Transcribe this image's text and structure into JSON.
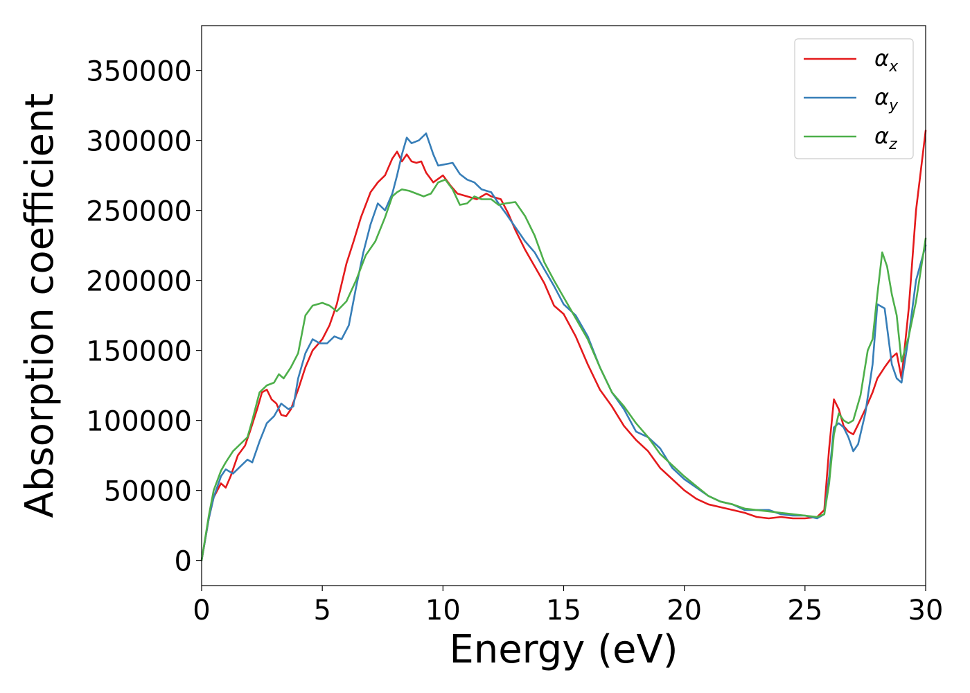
{
  "chart_data": {
    "type": "line",
    "xlabel": "Energy (eV)",
    "ylabel": "Absorption coefficient",
    "xlim": [
      0,
      30
    ],
    "ylim": [
      -18000,
      382000
    ],
    "x_ticks": [
      "0",
      "5",
      "10",
      "15",
      "20",
      "25",
      "30"
    ],
    "y_ticks": [
      "0",
      "50000",
      "100000",
      "150000",
      "200000",
      "250000",
      "300000",
      "350000"
    ],
    "grid": false,
    "legend_position": "top-right",
    "series": [
      {
        "name": "α_x",
        "symbol": "α",
        "subscript": "x",
        "color": "#e41a1c",
        "x": [
          0,
          0.3,
          0.5,
          0.8,
          1.0,
          1.2,
          1.5,
          1.8,
          2.0,
          2.3,
          2.5,
          2.7,
          2.9,
          3.1,
          3.3,
          3.5,
          3.7,
          4.0,
          4.3,
          4.6,
          5.0,
          5.3,
          5.6,
          6.0,
          6.3,
          6.6,
          7.0,
          7.3,
          7.6,
          7.9,
          8.1,
          8.3,
          8.5,
          8.7,
          8.9,
          9.1,
          9.3,
          9.6,
          10.0,
          10.3,
          10.6,
          11.0,
          11.4,
          11.8,
          12.0,
          12.4,
          12.7,
          13.0,
          13.4,
          13.8,
          14.2,
          14.6,
          15.0,
          15.5,
          16.0,
          16.5,
          17.0,
          17.5,
          18.0,
          18.5,
          19.0,
          19.5,
          20.0,
          20.5,
          21.0,
          21.5,
          22.0,
          22.5,
          23.0,
          23.5,
          24.0,
          24.5,
          25.0,
          25.5,
          25.8,
          26.0,
          26.2,
          26.4,
          26.6,
          26.8,
          27.0,
          27.2,
          27.5,
          27.8,
          28.0,
          28.3,
          28.6,
          28.8,
          29.0,
          29.3,
          29.6,
          30.0
        ],
        "values": [
          0,
          30000,
          45000,
          55000,
          52000,
          60000,
          75000,
          82000,
          92000,
          108000,
          120000,
          122000,
          115000,
          112000,
          104000,
          103000,
          108000,
          122000,
          138000,
          150000,
          158000,
          168000,
          183000,
          212000,
          228000,
          245000,
          263000,
          270000,
          275000,
          287000,
          292000,
          285000,
          290000,
          285000,
          284000,
          285000,
          277000,
          270000,
          275000,
          268000,
          262000,
          260000,
          258000,
          262000,
          260000,
          258000,
          248000,
          236000,
          222000,
          210000,
          198000,
          182000,
          176000,
          160000,
          140000,
          122000,
          110000,
          96000,
          86000,
          78000,
          66000,
          58000,
          50000,
          44000,
          40000,
          38000,
          36000,
          34000,
          31000,
          30000,
          31000,
          30000,
          30000,
          31000,
          36000,
          80000,
          115000,
          108000,
          96000,
          92000,
          90000,
          97000,
          108000,
          120000,
          130000,
          138000,
          145000,
          148000,
          130000,
          180000,
          250000,
          307000
        ]
      },
      {
        "name": "α_y",
        "symbol": "α",
        "subscript": "y",
        "color": "#377eb8",
        "x": [
          0,
          0.3,
          0.5,
          0.8,
          1.0,
          1.3,
          1.6,
          1.9,
          2.1,
          2.4,
          2.7,
          3.0,
          3.3,
          3.6,
          3.8,
          4.0,
          4.3,
          4.6,
          4.9,
          5.2,
          5.5,
          5.8,
          6.1,
          6.4,
          6.7,
          7.0,
          7.3,
          7.6,
          7.9,
          8.1,
          8.3,
          8.5,
          8.7,
          9.0,
          9.3,
          9.6,
          9.8,
          10.1,
          10.4,
          10.7,
          11.0,
          11.3,
          11.6,
          12.0,
          12.3,
          12.6,
          13.0,
          13.4,
          13.8,
          14.2,
          14.6,
          15.0,
          15.5,
          16.0,
          16.5,
          17.0,
          17.5,
          18.0,
          18.5,
          19.0,
          19.5,
          20.0,
          20.5,
          21.0,
          21.5,
          22.0,
          22.5,
          23.0,
          23.5,
          24.0,
          24.5,
          25.0,
          25.5,
          25.8,
          26.0,
          26.2,
          26.4,
          26.6,
          26.8,
          27.0,
          27.2,
          27.5,
          27.8,
          28.0,
          28.3,
          28.6,
          28.8,
          29.0,
          29.3,
          29.6,
          30.0
        ],
        "values": [
          0,
          30000,
          45000,
          60000,
          65000,
          62000,
          67000,
          72000,
          70000,
          85000,
          98000,
          103000,
          112000,
          108000,
          110000,
          130000,
          148000,
          158000,
          155000,
          155000,
          160000,
          158000,
          168000,
          195000,
          220000,
          240000,
          255000,
          250000,
          262000,
          275000,
          290000,
          302000,
          298000,
          300000,
          305000,
          290000,
          282000,
          283000,
          284000,
          276000,
          272000,
          270000,
          265000,
          263000,
          255000,
          248000,
          238000,
          228000,
          220000,
          208000,
          196000,
          183000,
          175000,
          160000,
          138000,
          120000,
          108000,
          92000,
          88000,
          80000,
          66000,
          58000,
          52000,
          46000,
          42000,
          40000,
          36000,
          36000,
          36000,
          33000,
          32000,
          32000,
          30000,
          33000,
          60000,
          95000,
          98000,
          95000,
          88000,
          78000,
          83000,
          105000,
          140000,
          183000,
          180000,
          140000,
          130000,
          127000,
          160000,
          200000,
          225000
        ],
        "hidden_note": ""
      },
      {
        "name": "α_z",
        "symbol": "α",
        "subscript": "z",
        "color": "#4daf4a",
        "x": [
          0,
          0.3,
          0.5,
          0.8,
          1.0,
          1.3,
          1.6,
          1.9,
          2.1,
          2.4,
          2.7,
          3.0,
          3.2,
          3.4,
          3.7,
          4.0,
          4.3,
          4.6,
          5.0,
          5.3,
          5.6,
          6.0,
          6.4,
          6.8,
          7.2,
          7.6,
          7.9,
          8.1,
          8.3,
          8.6,
          8.9,
          9.2,
          9.5,
          9.8,
          10.1,
          10.4,
          10.7,
          11.0,
          11.3,
          11.6,
          12.0,
          12.3,
          12.6,
          13.0,
          13.4,
          13.8,
          14.2,
          14.6,
          15.0,
          15.5,
          16.0,
          16.5,
          17.0,
          17.5,
          18.0,
          18.5,
          19.0,
          19.5,
          20.0,
          20.5,
          21.0,
          21.5,
          22.0,
          22.5,
          23.0,
          23.5,
          24.0,
          24.5,
          25.0,
          25.5,
          25.8,
          26.0,
          26.2,
          26.4,
          26.6,
          26.8,
          27.0,
          27.3,
          27.6,
          27.8,
          28.0,
          28.2,
          28.4,
          28.6,
          28.8,
          29.0,
          29.3,
          29.6,
          30.0
        ],
        "values": [
          0,
          32000,
          50000,
          64000,
          70000,
          78000,
          83000,
          88000,
          100000,
          120000,
          125000,
          127000,
          133000,
          130000,
          138000,
          148000,
          175000,
          182000,
          184000,
          182000,
          178000,
          185000,
          200000,
          218000,
          228000,
          245000,
          260000,
          263000,
          265000,
          264000,
          262000,
          260000,
          262000,
          270000,
          272000,
          265000,
          254000,
          255000,
          260000,
          258000,
          258000,
          254000,
          255000,
          256000,
          246000,
          232000,
          213000,
          200000,
          188000,
          173000,
          158000,
          138000,
          120000,
          110000,
          98000,
          88000,
          76000,
          68000,
          60000,
          53000,
          46000,
          42000,
          40000,
          37000,
          36000,
          35000,
          34000,
          33000,
          32000,
          31000,
          33000,
          55000,
          90000,
          105000,
          100000,
          98000,
          100000,
          118000,
          150000,
          158000,
          190000,
          220000,
          210000,
          190000,
          175000,
          142000,
          160000,
          185000,
          230000
        ]
      }
    ]
  }
}
